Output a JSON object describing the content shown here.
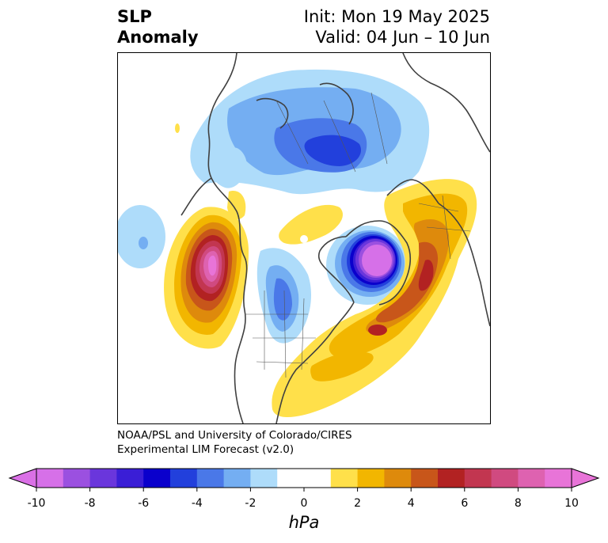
{
  "title": {
    "left_line1": "SLP",
    "left_line2": "Anomaly",
    "right_line1": "Init: Mon 19 May 2025",
    "right_line2": "Valid: 04 Jun – 10 Jun"
  },
  "credit": {
    "line1": "NOAA/PSL and University of Colorado/CIRES",
    "line2": "Experimental LIM Forecast (v2.0)"
  },
  "colorbar": {
    "units": "hPa",
    "tick_labels": [
      "-10",
      "-8",
      "-6",
      "-4",
      "-2",
      "0",
      "2",
      "4",
      "6",
      "8",
      "10"
    ],
    "under_color": "#da70e6",
    "over_color": "#e874d8",
    "colors": [
      "#d670e8",
      "#9b50e0",
      "#6a36dc",
      "#3a1ed6",
      "#0a00cc",
      "#2240dc",
      "#4a78e8",
      "#74aef2",
      "#aedcfa",
      "#ffffff",
      "#ffffff",
      "#ffe04a",
      "#f2b600",
      "#de8a0c",
      "#c8561a",
      "#b22222",
      "#c23650",
      "#d04a80",
      "#de62b0",
      "#e874d8"
    ]
  },
  "map": {
    "projection": "north-polar-stereographic",
    "field": "sea-level pressure anomaly",
    "features": [
      "coastlines",
      "country-borders",
      "us-state-borders"
    ]
  }
}
